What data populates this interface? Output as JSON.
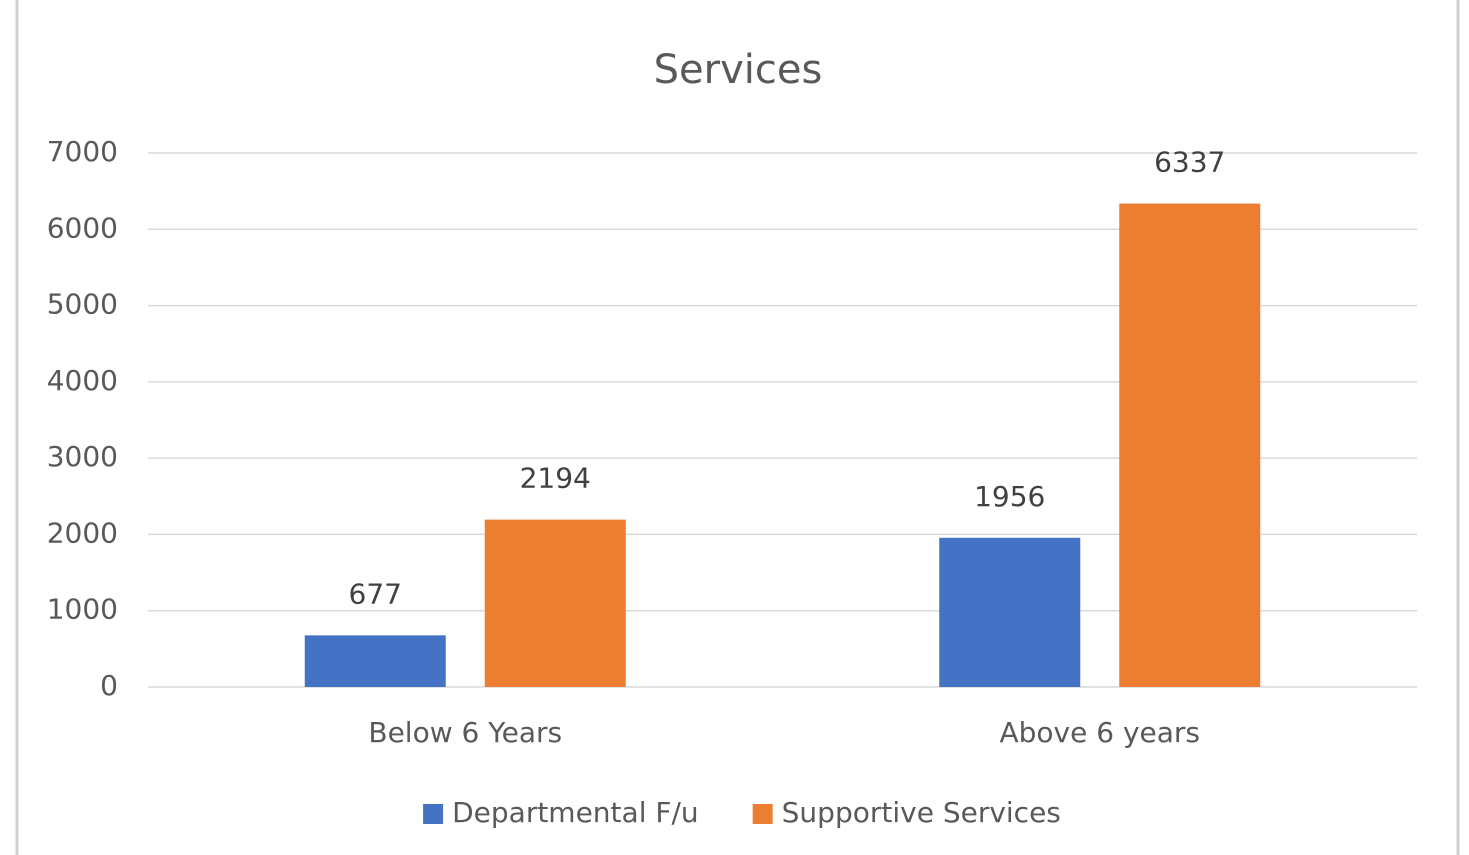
{
  "chart_data": {
    "type": "bar",
    "title": "Services",
    "categories": [
      "Below 6 Years",
      "Above 6 years"
    ],
    "series": [
      {
        "name": "Departmental F/u",
        "color": "#4472c4",
        "values": [
          677,
          1956
        ]
      },
      {
        "name": "Supportive Services",
        "color": "#ed7d31",
        "values": [
          2194,
          6337
        ]
      }
    ],
    "ylim": [
      0,
      7000
    ],
    "yticks": [
      0,
      1000,
      2000,
      3000,
      4000,
      5000,
      6000,
      7000
    ],
    "grid": true,
    "legend": "bottom"
  }
}
